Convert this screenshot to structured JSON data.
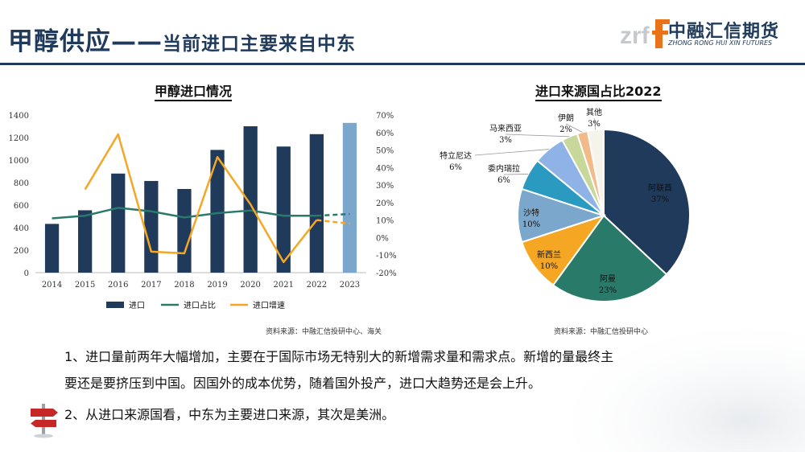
{
  "header": {
    "title_main": "甲醇供应——",
    "title_sub": "当前进口主要来自中东",
    "logo_cn": "中融汇信期货",
    "logo_en": "ZHONG RONG HUI XIN FUTURES",
    "logo_mark": "zrf",
    "colors": {
      "brand": "#1f3a5a",
      "brand_orange": "#e8731a"
    }
  },
  "chart_data": [
    {
      "type": "bar",
      "title": "甲醇进口情况",
      "categories": [
        "2014",
        "2015",
        "2016",
        "2017",
        "2018",
        "2019",
        "2020",
        "2021",
        "2022",
        "2023"
      ],
      "y_ticks": [
        "0",
        "200",
        "400",
        "600",
        "800",
        "1000",
        "1200",
        "1400"
      ],
      "y2_ticks": [
        "-20%",
        "-10%",
        "0%",
        "10%",
        "20%",
        "30%",
        "40%",
        "50%",
        "60%",
        "70%"
      ],
      "ylim": [
        0,
        1400
      ],
      "y2lim": [
        -20,
        70
      ],
      "grid": false,
      "legend_position": "bottom",
      "series": [
        {
          "name": "进口",
          "kind": "bar",
          "axis": "left",
          "color": "#1f3a5a",
          "highlight_last_color": "#7ba7cc",
          "values": [
            433,
            554,
            880,
            814,
            743,
            1090,
            1300,
            1120,
            1230,
            1330
          ]
        },
        {
          "name": "进口占比",
          "kind": "line",
          "axis": "right",
          "color": "#2a7a6a",
          "dashed_from_index": 8,
          "values": [
            11,
            12.5,
            17,
            15,
            11.5,
            14,
            15.5,
            12.5,
            12.5,
            13.5
          ]
        },
        {
          "name": "进口增速",
          "kind": "line",
          "axis": "right",
          "color": "#f5a623",
          "dashed_from_index": 8,
          "values": [
            null,
            27.5,
            59,
            -8,
            -9,
            46,
            19,
            -14,
            10,
            8
          ]
        }
      ],
      "source": "资料来源：中融汇信投研中心、海关"
    },
    {
      "type": "pie",
      "title": "进口来源国占比2022",
      "slices": [
        {
          "label": "阿联酋",
          "pct_label": "37%",
          "value": 37,
          "color": "#1f3a5a"
        },
        {
          "label": "阿曼",
          "pct_label": "23%",
          "value": 23,
          "color": "#2a7a6a"
        },
        {
          "label": "新西兰",
          "pct_label": "10%",
          "value": 10,
          "color": "#f5a623"
        },
        {
          "label": "沙特",
          "pct_label": "10%",
          "value": 10,
          "color": "#7ba7cc"
        },
        {
          "label": "委内瑞拉",
          "pct_label": "6%",
          "value": 6,
          "color": "#2a9ac0"
        },
        {
          "label": "特立尼达",
          "pct_label": "6%",
          "value": 6,
          "color": "#8fb3e6"
        },
        {
          "label": "马来西亚",
          "pct_label": "3%",
          "value": 3,
          "color": "#c8d89a"
        },
        {
          "label": "伊朗",
          "pct_label": "2%",
          "value": 2,
          "color": "#f2b98a"
        },
        {
          "label": "其他",
          "pct_label": "3%",
          "value": 3,
          "color": "#f6f3ea"
        }
      ],
      "source": "资料来源：中融汇信投研中心"
    }
  ],
  "body_text": {
    "line1": "1、进口量前两年大幅增加，主要在于国际市场无特别大的新增需求量和需求点。新增的量最终主",
    "line2": "要还是要挤压到中国。因国外的成本优势，随着国外投产，进口大趋势还是会上升。",
    "line3": "2、从进口来源国看，中东为主要进口来源，其次是美洲。"
  },
  "icons": {
    "signpost": "signpost-icon"
  }
}
